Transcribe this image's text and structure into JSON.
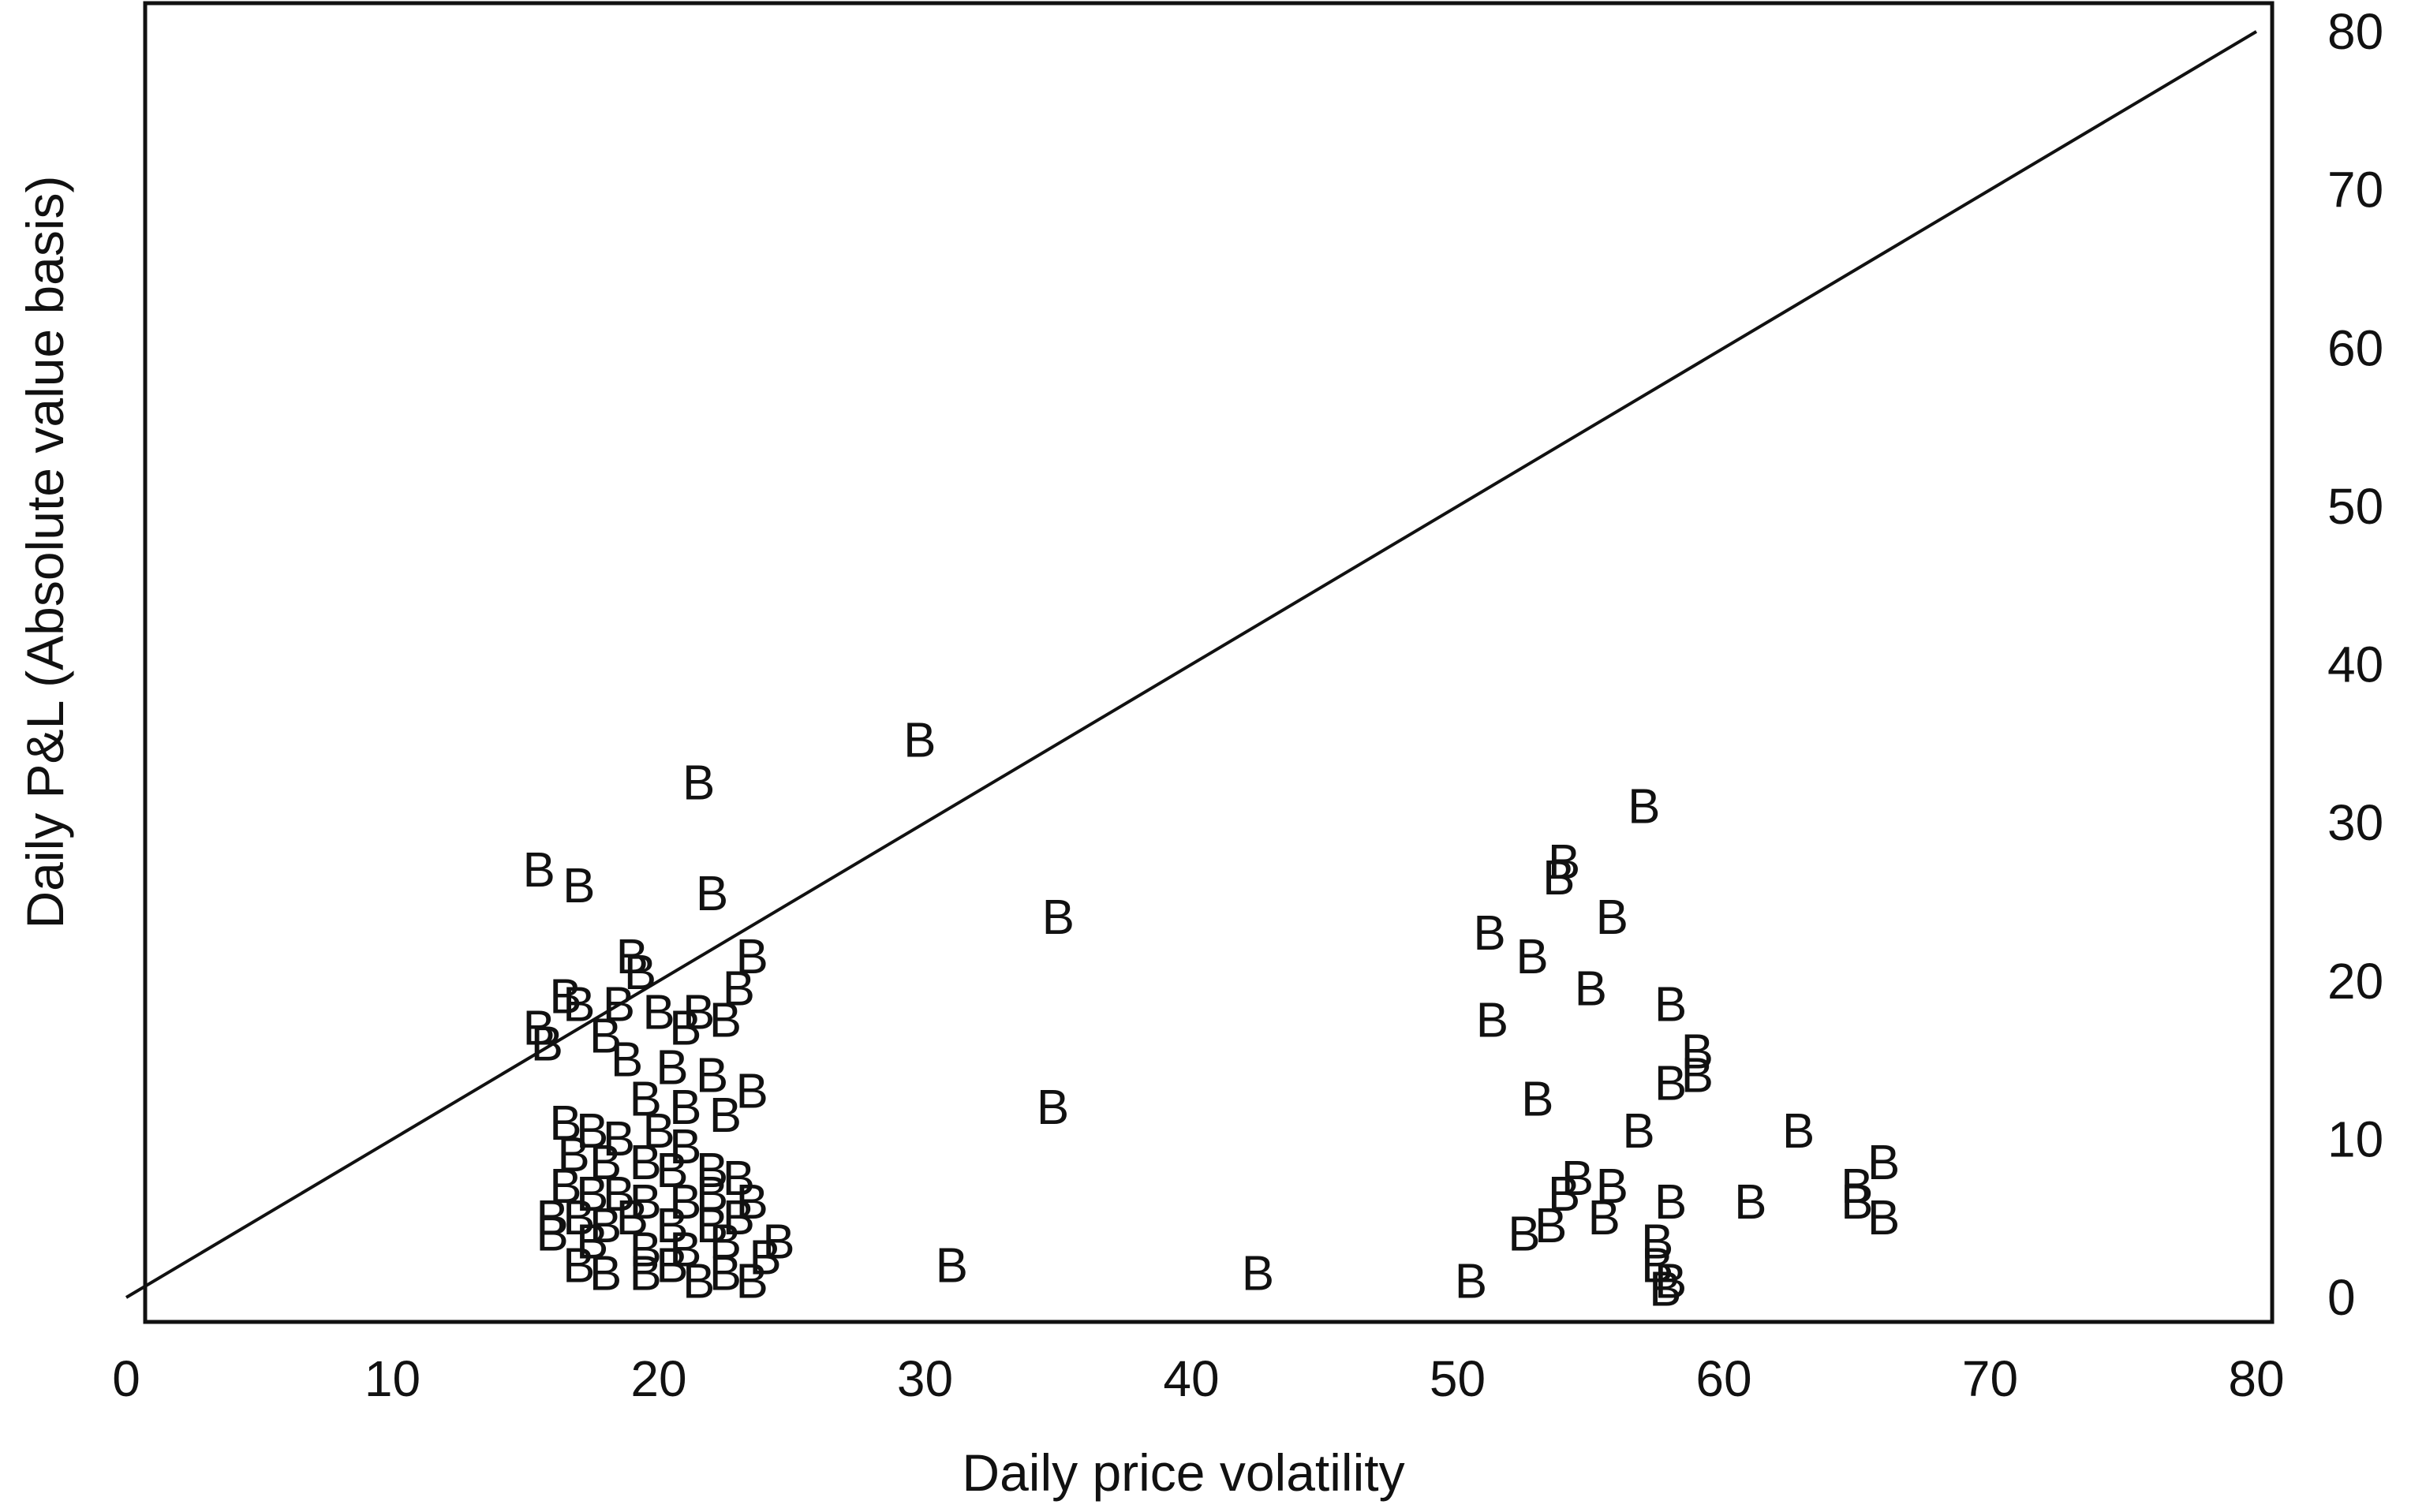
{
  "chart_data": {
    "type": "scatter",
    "marker": "B",
    "title": "",
    "xlabel": "Daily price volatility",
    "ylabel": "Daily P&L    (Absolute value basis)",
    "xlim": [
      0,
      80
    ],
    "ylim": [
      0,
      80
    ],
    "xticks": [
      "0",
      "10",
      "20",
      "30",
      "40",
      "50",
      "60",
      "70",
      "80"
    ],
    "yticks": [
      "0",
      "10",
      "20",
      "30",
      "40",
      "50",
      "60",
      "70",
      "80"
    ],
    "x_tick_values": [
      0,
      10,
      20,
      30,
      40,
      50,
      60,
      70,
      80
    ],
    "y_tick_values": [
      0,
      10,
      20,
      30,
      40,
      50,
      60,
      70,
      80
    ],
    "y_axis_side": "right",
    "grid": false,
    "reference_line": {
      "from": [
        0,
        0
      ],
      "to": [
        80,
        80
      ]
    },
    "points": [
      [
        21.5,
        32.5
      ],
      [
        29.8,
        35.2
      ],
      [
        15.5,
        27.0
      ],
      [
        17.0,
        26.0
      ],
      [
        22.0,
        25.5
      ],
      [
        35.0,
        24.0
      ],
      [
        34.8,
        12.0
      ],
      [
        31.0,
        2.0
      ],
      [
        42.5,
        1.5
      ],
      [
        50.5,
        1.0
      ],
      [
        19.0,
        21.5
      ],
      [
        19.3,
        20.5
      ],
      [
        23.5,
        21.5
      ],
      [
        23.0,
        19.5
      ],
      [
        16.5,
        19.0
      ],
      [
        17.0,
        18.5
      ],
      [
        18.5,
        18.5
      ],
      [
        20.0,
        18.0
      ],
      [
        21.5,
        18.0
      ],
      [
        15.5,
        17.0
      ],
      [
        15.8,
        16.0
      ],
      [
        18.0,
        16.5
      ],
      [
        21.0,
        17.0
      ],
      [
        22.5,
        17.5
      ],
      [
        18.8,
        15.0
      ],
      [
        20.5,
        14.5
      ],
      [
        22.0,
        14.0
      ],
      [
        23.5,
        13.0
      ],
      [
        19.5,
        12.5
      ],
      [
        21.0,
        12.0
      ],
      [
        22.5,
        11.5
      ],
      [
        16.5,
        11.0
      ],
      [
        17.5,
        10.5
      ],
      [
        18.5,
        10.0
      ],
      [
        20.0,
        10.5
      ],
      [
        21.0,
        9.5
      ],
      [
        16.8,
        9.0
      ],
      [
        18.0,
        8.5
      ],
      [
        19.5,
        8.5
      ],
      [
        20.5,
        8.0
      ],
      [
        22.0,
        8.0
      ],
      [
        23.0,
        7.5
      ],
      [
        16.5,
        7.0
      ],
      [
        17.5,
        6.5
      ],
      [
        18.5,
        6.5
      ],
      [
        19.5,
        6.0
      ],
      [
        21.0,
        6.0
      ],
      [
        22.0,
        6.5
      ],
      [
        23.5,
        6.0
      ],
      [
        16.0,
        5.0
      ],
      [
        17.0,
        5.0
      ],
      [
        18.0,
        4.5
      ],
      [
        19.0,
        5.0
      ],
      [
        20.5,
        4.5
      ],
      [
        22.0,
        4.5
      ],
      [
        23.0,
        5.0
      ],
      [
        24.5,
        3.5
      ],
      [
        16.0,
        4.0
      ],
      [
        17.5,
        3.5
      ],
      [
        19.5,
        3.0
      ],
      [
        21.0,
        3.0
      ],
      [
        22.5,
        3.5
      ],
      [
        24.0,
        2.5
      ],
      [
        17.0,
        2.0
      ],
      [
        18.0,
        1.5
      ],
      [
        19.5,
        1.5
      ],
      [
        20.5,
        2.0
      ],
      [
        21.5,
        1.0
      ],
      [
        22.5,
        1.5
      ],
      [
        23.5,
        1.0
      ],
      [
        57.0,
        31.0
      ],
      [
        54.0,
        27.5
      ],
      [
        53.8,
        26.5
      ],
      [
        55.8,
        24.0
      ],
      [
        51.2,
        23.0
      ],
      [
        52.8,
        21.5
      ],
      [
        55.0,
        19.5
      ],
      [
        58.0,
        18.5
      ],
      [
        51.3,
        17.5
      ],
      [
        59.0,
        15.5
      ],
      [
        59.0,
        14.0
      ],
      [
        58.0,
        13.5
      ],
      [
        53.0,
        12.5
      ],
      [
        56.8,
        10.5
      ],
      [
        62.8,
        10.5
      ],
      [
        66.0,
        8.5
      ],
      [
        54.5,
        7.5
      ],
      [
        55.8,
        7.0
      ],
      [
        54.0,
        6.5
      ],
      [
        58.0,
        6.0
      ],
      [
        61.0,
        6.0
      ],
      [
        65.0,
        6.0
      ],
      [
        65.0,
        7.0
      ],
      [
        66.0,
        5.0
      ],
      [
        55.5,
        5.0
      ],
      [
        53.5,
        4.5
      ],
      [
        52.5,
        4.0
      ],
      [
        57.5,
        3.5
      ],
      [
        57.5,
        2.0
      ],
      [
        58.0,
        1.0
      ],
      [
        57.8,
        0.5
      ]
    ]
  }
}
